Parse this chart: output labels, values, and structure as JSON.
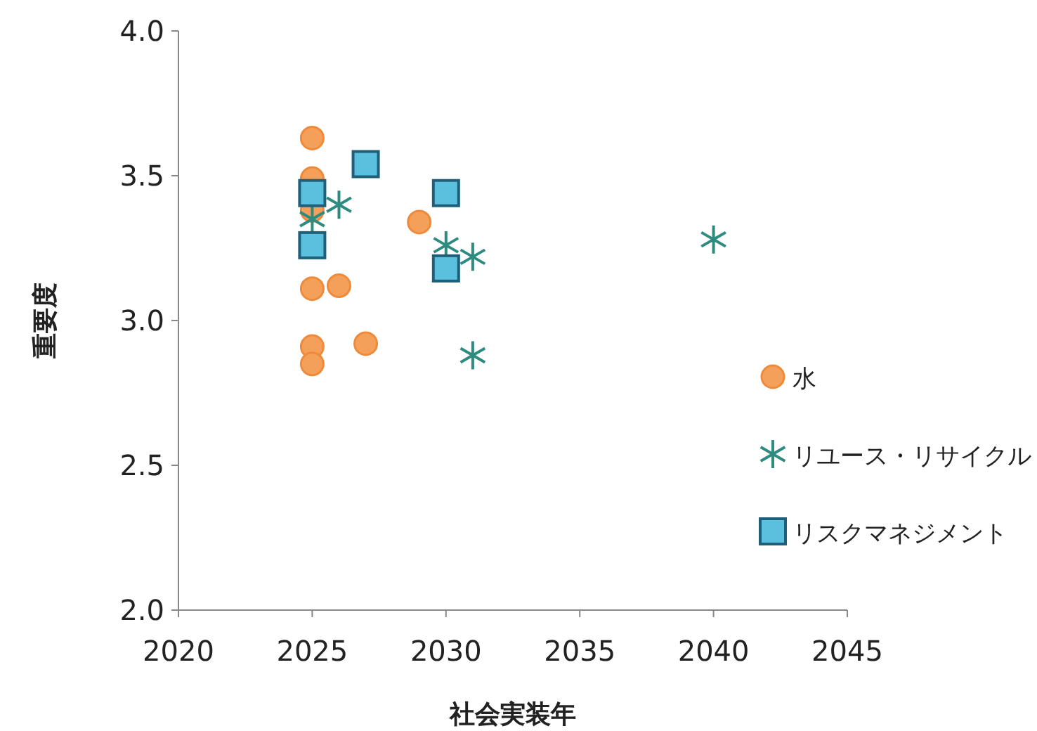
{
  "chart_data": {
    "type": "scatter",
    "xlabel": "社会実装年",
    "ylabel": "重要度",
    "xlim": [
      2020,
      2045
    ],
    "xticks": [
      2020,
      2025,
      2030,
      2035,
      2040,
      2045
    ],
    "ylim": [
      2.0,
      4.0
    ],
    "yticks": [
      {
        "value": 2,
        "label": "2.0"
      },
      2.5,
      {
        "value": 3,
        "label": "3.0"
      },
      3.5,
      {
        "value": 4,
        "label": "4.0"
      }
    ],
    "grid": false,
    "legend": "right",
    "series": [
      {
        "name": "水",
        "color": "#f5a05a",
        "marker": "circle",
        "x": [
          2025,
          2025,
          2025,
          2025,
          2026,
          2025,
          2025,
          2027,
          2029
        ],
        "values": [
          3.63,
          3.49,
          3.38,
          3.11,
          3.12,
          2.91,
          2.85,
          2.92,
          3.34
        ]
      },
      {
        "name": "リユース・リサイクル",
        "color": "#2e8b80",
        "marker": "cross",
        "x": [
          2026,
          2025,
          2030,
          2031,
          2031,
          2040
        ],
        "values": [
          3.4,
          3.35,
          3.26,
          3.22,
          2.88,
          3.28
        ]
      },
      {
        "name": "リスクマネジメント",
        "color": "#5bc0de",
        "marker": "square",
        "x": [
          2025,
          2027,
          2025,
          2030,
          2030
        ],
        "values": [
          3.44,
          3.54,
          3.26,
          3.44,
          3.18
        ]
      }
    ]
  }
}
